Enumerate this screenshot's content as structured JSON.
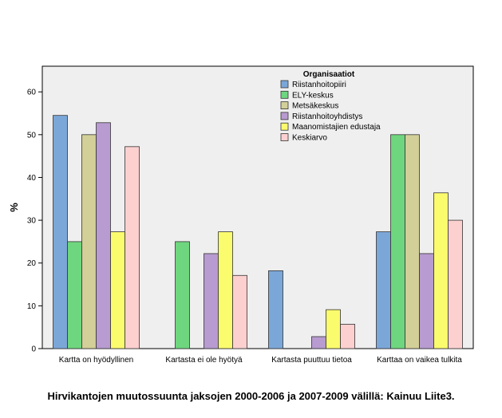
{
  "caption": "Hirvikantojen muutossuunta jaksojen 2000-2006 ja 2007-2009 välillä: Kainuu Liite3.",
  "chart_data": {
    "type": "bar",
    "title": "",
    "xlabel": "",
    "ylabel": "%",
    "ylim": [
      0,
      66
    ],
    "yticks": [
      0,
      10,
      20,
      30,
      40,
      50,
      60
    ],
    "grid": false,
    "legend_title": "Organisaatiot",
    "legend_position": "top-right",
    "background": "#efefef",
    "categories": [
      "Kartta on hyödyllinen",
      "Kartasta ei ole hyötyä",
      "Kartasta puuttuu tietoa",
      "Karttaa on vaikea tulkita"
    ],
    "series": [
      {
        "name": "Riistanhoitopiiri",
        "color": "#7ba7d8",
        "values": [
          54.5,
          0,
          18.2,
          27.3
        ]
      },
      {
        "name": "ELY-keskus",
        "color": "#6ed67e",
        "values": [
          25.0,
          25.0,
          0,
          50.0
        ]
      },
      {
        "name": "Metsäkeskus",
        "color": "#d2cf98",
        "values": [
          50.0,
          0,
          0,
          50.0
        ]
      },
      {
        "name": "Riistanhoitoyhdistys",
        "color": "#b89bd0",
        "values": [
          52.8,
          22.2,
          2.8,
          22.2
        ]
      },
      {
        "name": "Maanomistajien edustaja",
        "color": "#fbfb6e",
        "values": [
          27.3,
          27.3,
          9.1,
          36.4
        ]
      },
      {
        "name": "Keskiarvo",
        "color": "#fdd0d0",
        "values": [
          47.2,
          17.1,
          5.7,
          30.0
        ]
      }
    ]
  }
}
